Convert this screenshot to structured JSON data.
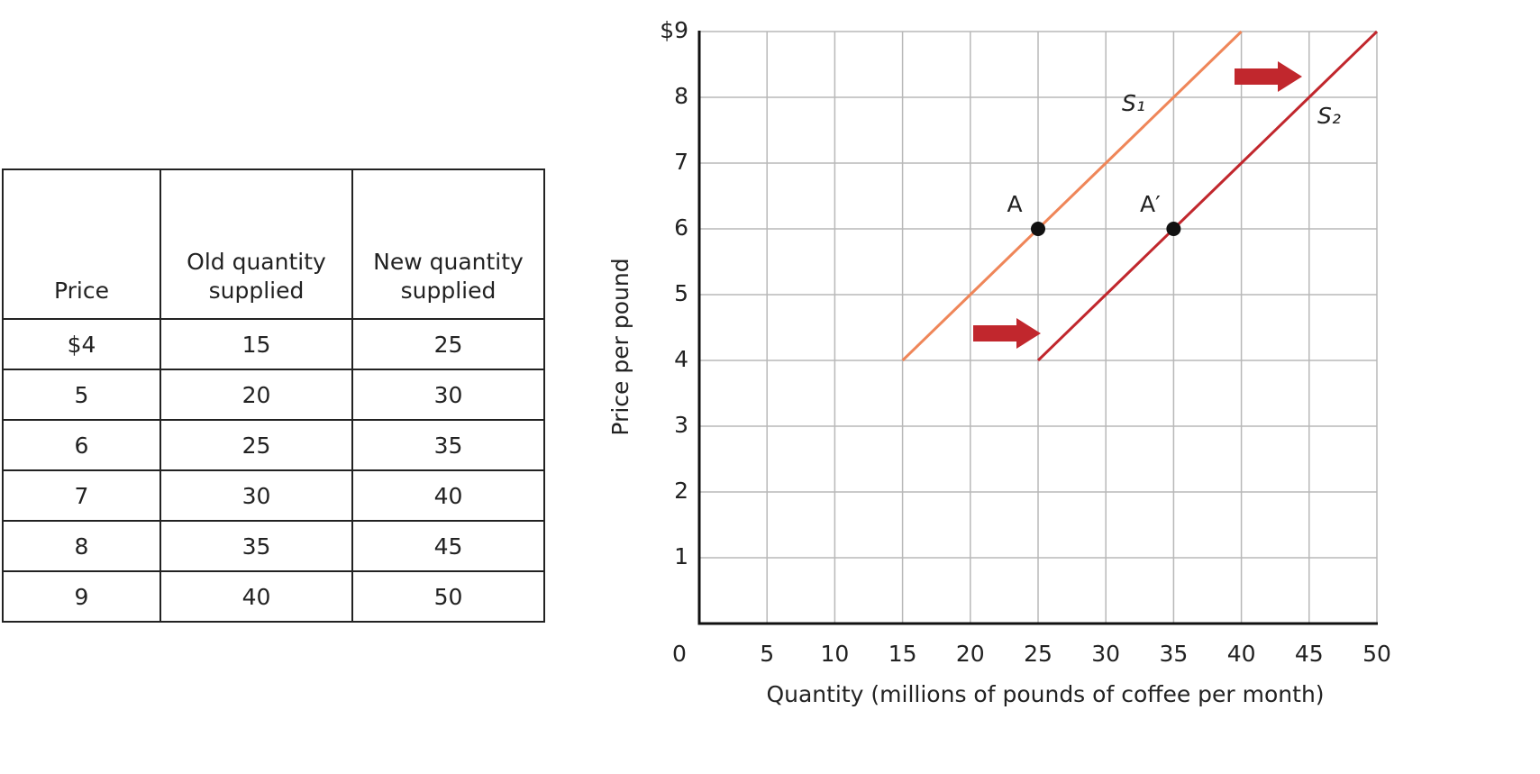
{
  "table": {
    "header": [
      "Price",
      "Old quantity supplied",
      "New quantity supplied"
    ],
    "rows": [
      [
        "$4",
        "15",
        "25"
      ],
      [
        "5",
        "20",
        "30"
      ],
      [
        "6",
        "25",
        "35"
      ],
      [
        "7",
        "30",
        "40"
      ],
      [
        "8",
        "35",
        "45"
      ],
      [
        "9",
        "40",
        "50"
      ]
    ]
  },
  "chart_data": {
    "type": "line",
    "xlabel": "Quantity (millions of pounds of coffee per month)",
    "ylabel": "Price per pound",
    "xlim": [
      0,
      50
    ],
    "ylim": [
      0,
      9
    ],
    "xticks": [
      0,
      5,
      10,
      15,
      20,
      25,
      30,
      35,
      40,
      45,
      50
    ],
    "yticks": [
      1,
      2,
      3,
      4,
      5,
      6,
      7,
      8,
      {
        "value": 9,
        "label": "$9"
      }
    ],
    "grid": true,
    "series": [
      {
        "name": "S₁",
        "color": "#ef8659",
        "x": [
          15,
          20,
          25,
          30,
          35,
          40
        ],
        "values": [
          4,
          5,
          6,
          7,
          8,
          9
        ]
      },
      {
        "name": "S₂",
        "color": "#c1272d",
        "x": [
          25,
          30,
          35,
          40,
          45,
          50
        ],
        "values": [
          4,
          5,
          6,
          7,
          8,
          9
        ]
      }
    ],
    "points": [
      {
        "label": "A",
        "x": 25,
        "y": 6
      },
      {
        "label": "A′",
        "x": 35,
        "y": 6
      }
    ]
  }
}
